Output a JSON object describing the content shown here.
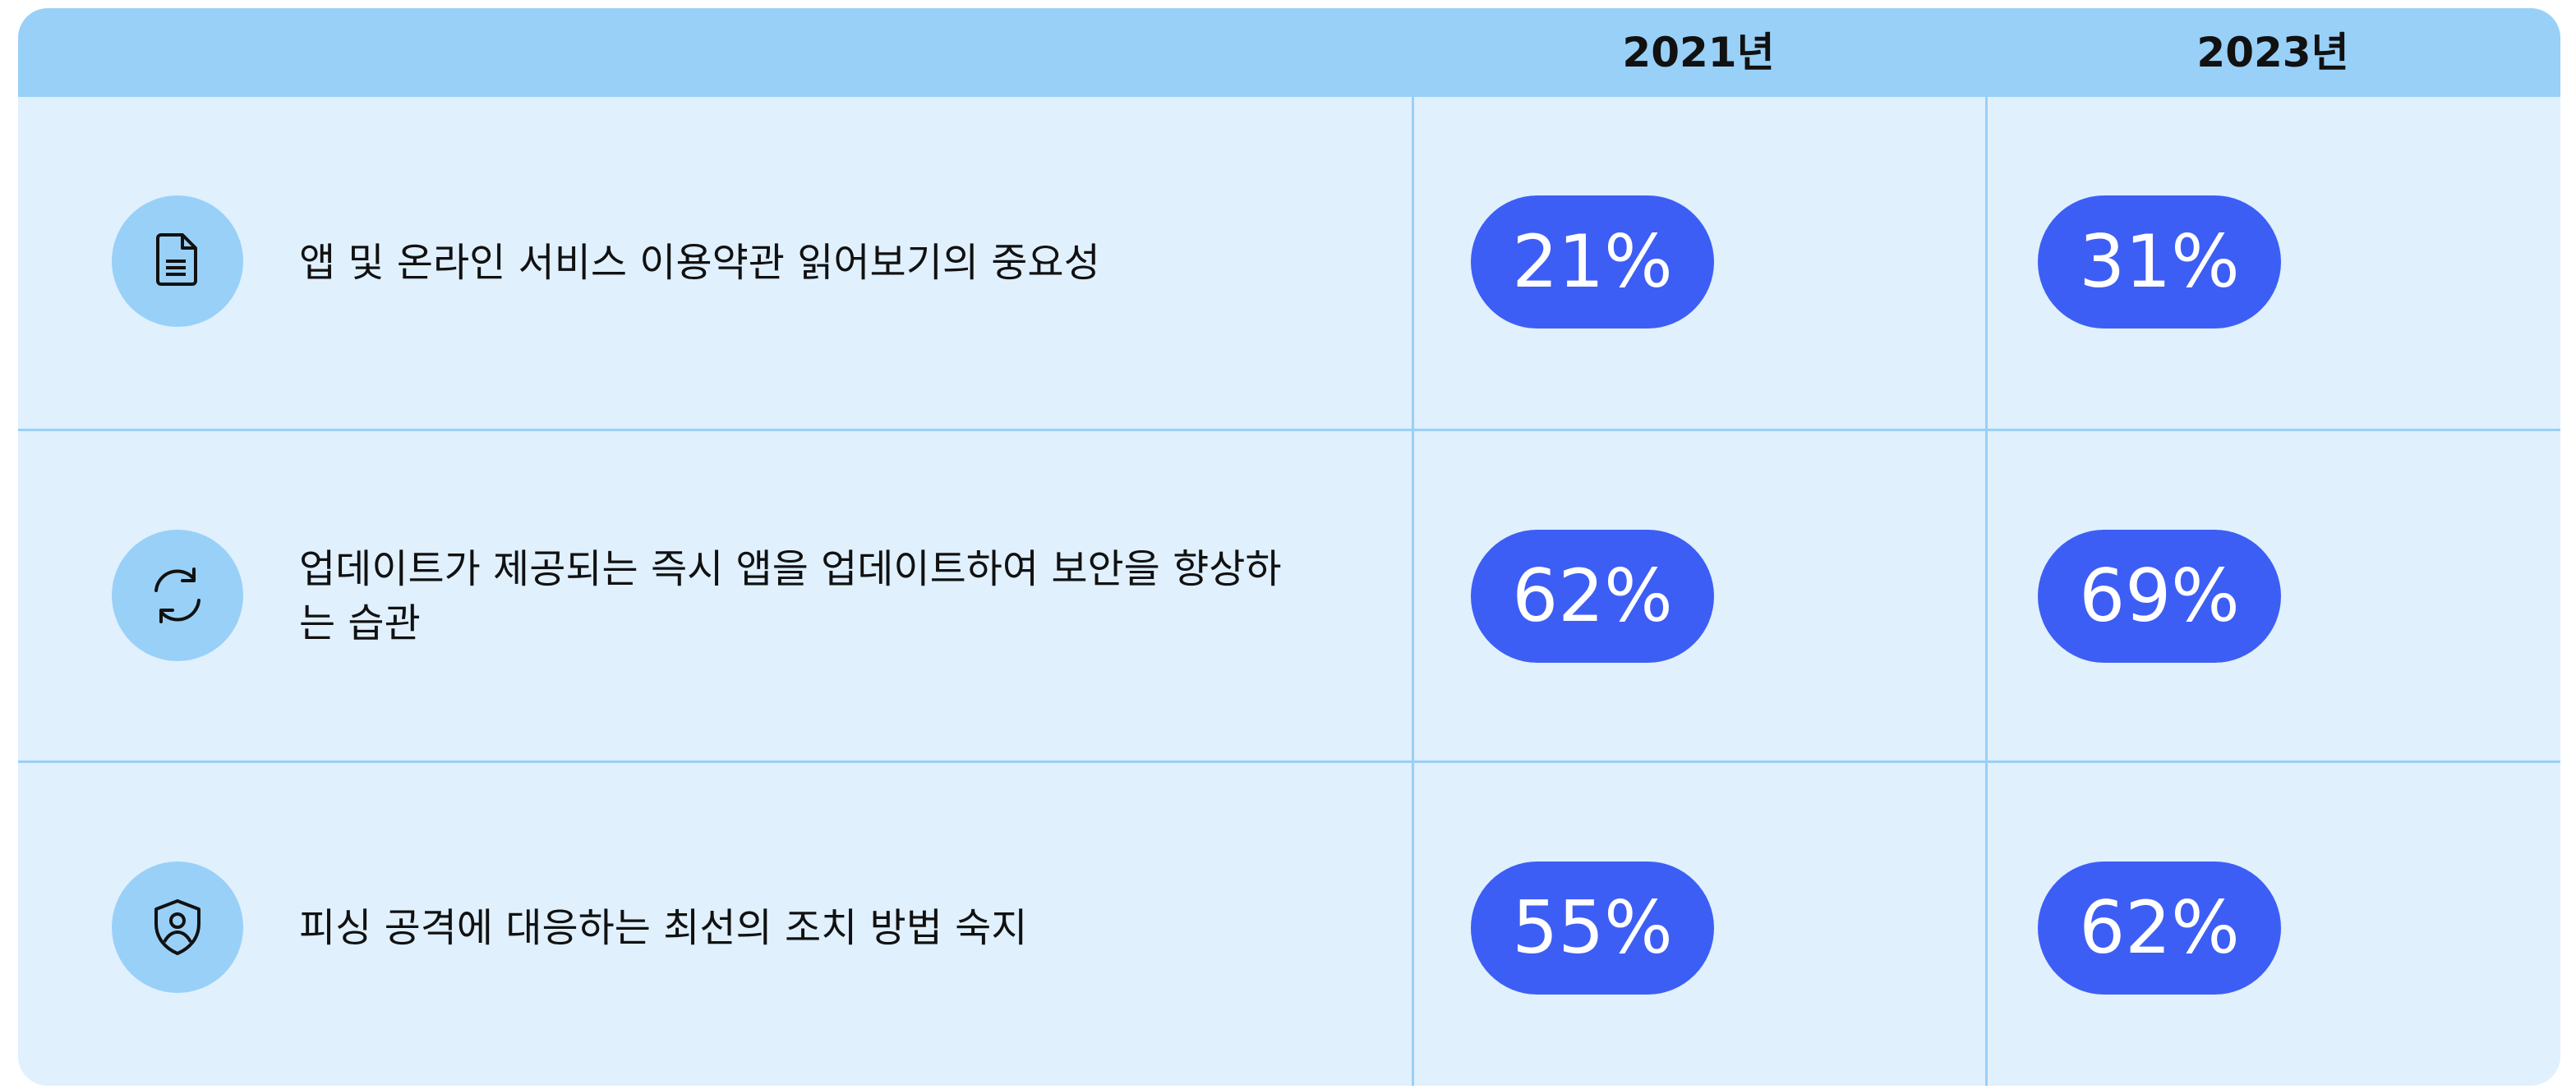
{
  "header": {
    "columns": [
      "2021년",
      "2023년"
    ]
  },
  "table": {
    "rows": [
      {
        "label": "앱 및 온라인 서비스 이용약관 읽어보기의 중요성",
        "values": [
          "21%",
          "31%"
        ]
      },
      {
        "label": "업데이트가 제공되는 즉시 앱을 업데이트하여 보안을 향상하는 습관",
        "values": [
          "62%",
          "69%"
        ]
      },
      {
        "label": "피싱 공격에 대응하는 최선의 조치 방법 숙지",
        "values": [
          "55%",
          "62%"
        ]
      }
    ]
  }
}
